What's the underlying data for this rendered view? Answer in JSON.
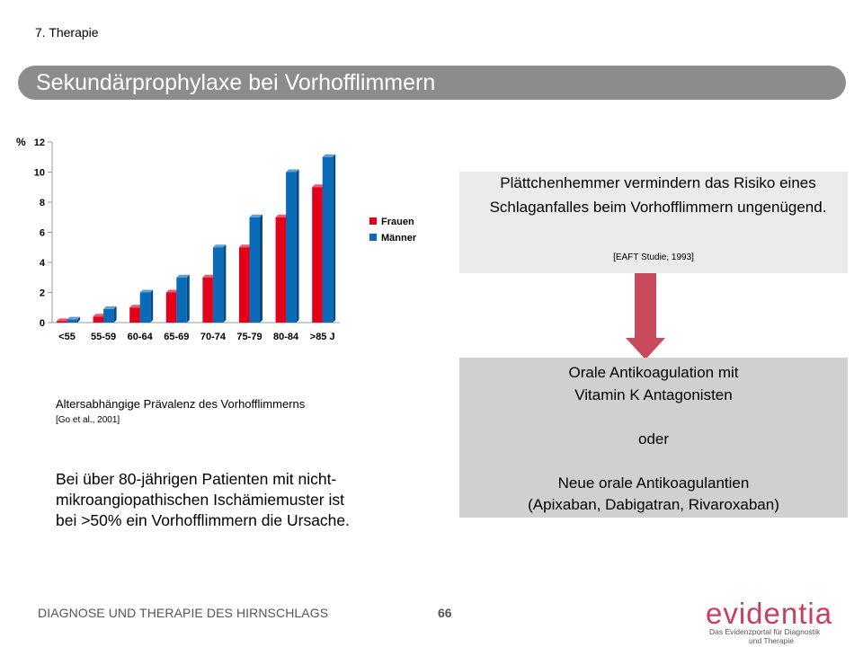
{
  "header": {
    "section": "7. Therapie",
    "title": "Sekundärprophylaxe bei Vorhofflimmern"
  },
  "chart_data": {
    "type": "bar",
    "categories": [
      "<55",
      "55-59",
      "60-64",
      "65-69",
      "70-74",
      "75-79",
      "80-84",
      ">85 J"
    ],
    "series": [
      {
        "name": "Frauen",
        "color": "#e3001b",
        "values": [
          0.1,
          0.4,
          1.0,
          2.0,
          3.0,
          5.0,
          7.0,
          9.0
        ]
      },
      {
        "name": "Männer",
        "color": "#0a6bb8",
        "values": [
          0.2,
          0.9,
          2.0,
          3.0,
          5.0,
          7.0,
          10.0,
          11.0
        ]
      }
    ],
    "yunit": "%",
    "ylim": [
      0,
      12
    ],
    "yticks": [
      0,
      2,
      4,
      6,
      8,
      10,
      12
    ],
    "legend": "right",
    "grid": false
  },
  "chart_caption": "Altersabhängige Prävalenz des Vorhofflimmerns",
  "chart_citation": "[Go et al., 2001]",
  "body_text": "Bei über 80-jährigen Patienten mit nicht-mikroangiopathischen Ischämiemuster ist bei >50% ein Vorhofflimmern die Ursache.",
  "box_top": {
    "text": "Plättchenhemmer vermindern das Risiko eines Schlaganfalles beim Vorhofflimmern ungenügend.",
    "citation": "[EAFT Studie, 1993]"
  },
  "box_bottom": {
    "lines": [
      "Orale Antikoagulation mit",
      "Vitamin K Antagonisten",
      "",
      "oder",
      "",
      "Neue orale Antikoagulantien",
      "(Apixaban, Dabigatran, Rivaroxaban)"
    ]
  },
  "arrow_color": "#c84a5c",
  "footer": {
    "text": "DIAGNOSE UND THERAPIE DES HIRNSCHLAGS",
    "page": "66"
  },
  "logo": {
    "name": "evidentia",
    "tagline_1": "Das Evidenzportal für Diagnostik",
    "tagline_2": "und Therapie"
  }
}
